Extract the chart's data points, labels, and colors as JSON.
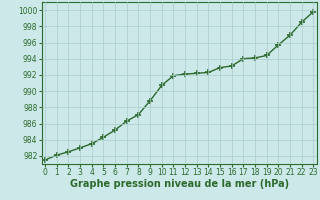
{
  "x": [
    0,
    1,
    2,
    3,
    4,
    5,
    6,
    7,
    8,
    9,
    10,
    11,
    12,
    13,
    14,
    15,
    16,
    17,
    18,
    19,
    20,
    21,
    22,
    23
  ],
  "y": [
    981.5,
    982.1,
    982.5,
    983.0,
    983.5,
    984.3,
    985.2,
    986.3,
    987.1,
    988.8,
    990.7,
    991.9,
    992.1,
    992.2,
    992.3,
    992.9,
    993.1,
    994.0,
    994.1,
    994.4,
    995.7,
    996.9,
    998.5,
    999.8
  ],
  "line_color": "#2d6a2d",
  "marker": "+",
  "marker_size": 4,
  "bg_color": "#cce8e8",
  "grid_color": "#aacccc",
  "xlabel": "Graphe pression niveau de la mer (hPa)",
  "xlabel_fontsize": 7,
  "ylabel_ticks": [
    982,
    984,
    986,
    988,
    990,
    992,
    994,
    996,
    998,
    1000
  ],
  "xticks": [
    0,
    1,
    2,
    3,
    4,
    5,
    6,
    7,
    8,
    9,
    10,
    11,
    12,
    13,
    14,
    15,
    16,
    17,
    18,
    19,
    20,
    21,
    22,
    23
  ],
  "ylim": [
    981,
    1001
  ],
  "xlim": [
    -0.3,
    23.3
  ],
  "tick_fontsize": 5.5,
  "line_width": 1.0
}
